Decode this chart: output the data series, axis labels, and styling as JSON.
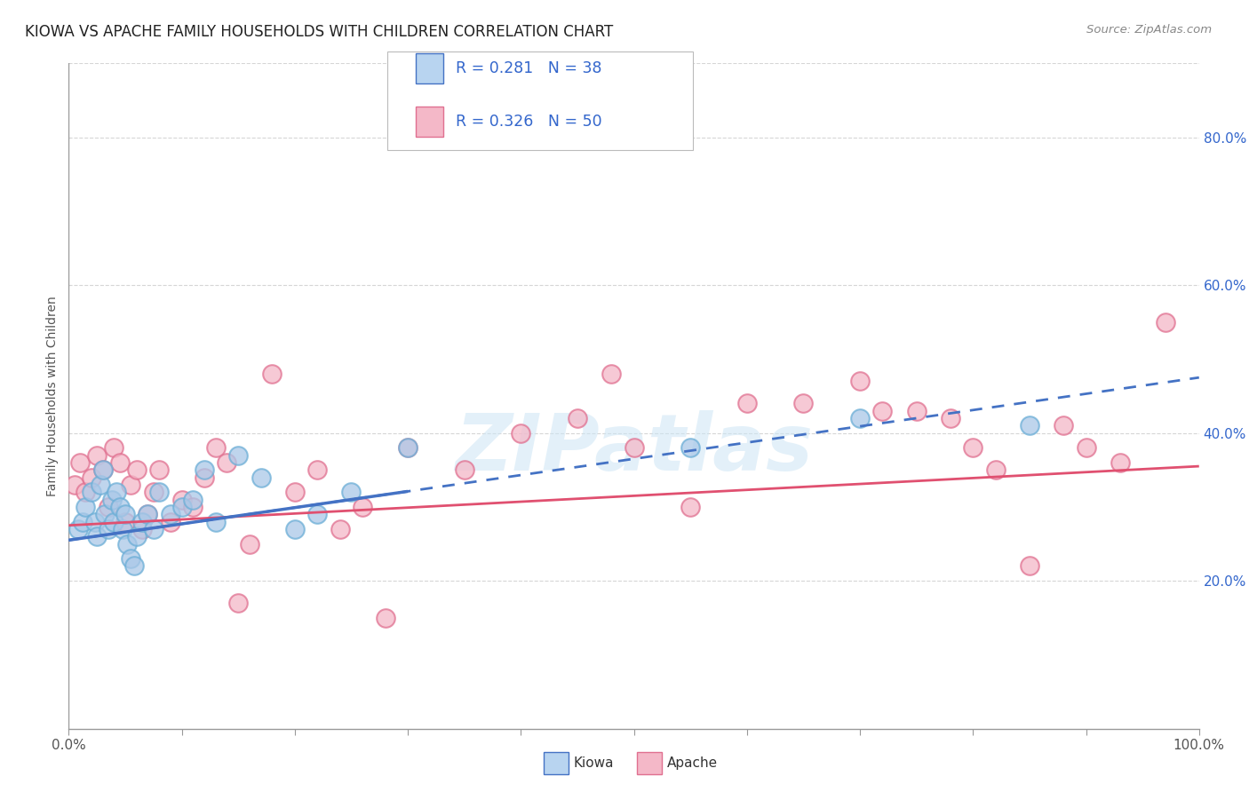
{
  "title": "KIOWA VS APACHE FAMILY HOUSEHOLDS WITH CHILDREN CORRELATION CHART",
  "source": "Source: ZipAtlas.com",
  "ylabel": "Family Households with Children",
  "watermark": "ZIPatlas",
  "kiowa": {
    "label": "Kiowa",
    "R": 0.281,
    "N": 38,
    "dot_fill": "#aac8e8",
    "dot_edge": "#6baed6",
    "line_color": "#4472c4",
    "legend_fill": "#b8d4f0",
    "x": [
      0.8,
      1.2,
      1.5,
      2.0,
      2.3,
      2.5,
      2.8,
      3.0,
      3.2,
      3.5,
      3.8,
      4.0,
      4.2,
      4.5,
      4.8,
      5.0,
      5.2,
      5.5,
      5.8,
      6.0,
      6.5,
      7.0,
      7.5,
      8.0,
      9.0,
      10.0,
      11.0,
      12.0,
      13.0,
      15.0,
      17.0,
      20.0,
      22.0,
      25.0,
      30.0,
      55.0,
      70.0,
      85.0
    ],
    "y": [
      27,
      28,
      30,
      32,
      28,
      26,
      33,
      35,
      29,
      27,
      31,
      28,
      32,
      30,
      27,
      29,
      25,
      23,
      22,
      26,
      28,
      29,
      27,
      32,
      29,
      30,
      31,
      35,
      28,
      37,
      34,
      27,
      29,
      32,
      38,
      38,
      42,
      41
    ],
    "trend_x0": 0,
    "trend_y0": 25.5,
    "trend_x1": 100,
    "trend_y1": 47.5
  },
  "apache": {
    "label": "Apache",
    "R": 0.326,
    "N": 50,
    "dot_fill": "#f4b8c8",
    "dot_edge": "#e07090",
    "line_color": "#e05070",
    "legend_fill": "#f4b8c8",
    "x": [
      0.5,
      1.0,
      1.5,
      2.0,
      2.5,
      3.0,
      3.5,
      4.0,
      4.5,
      5.0,
      5.5,
      6.0,
      6.5,
      7.0,
      7.5,
      8.0,
      9.0,
      10.0,
      11.0,
      12.0,
      13.0,
      14.0,
      15.0,
      16.0,
      18.0,
      20.0,
      22.0,
      24.0,
      26.0,
      28.0,
      30.0,
      35.0,
      40.0,
      45.0,
      48.0,
      50.0,
      55.0,
      60.0,
      65.0,
      70.0,
      72.0,
      75.0,
      78.0,
      80.0,
      82.0,
      85.0,
      88.0,
      90.0,
      93.0,
      97.0
    ],
    "y": [
      33,
      36,
      32,
      34,
      37,
      35,
      30,
      38,
      36,
      28,
      33,
      35,
      27,
      29,
      32,
      35,
      28,
      31,
      30,
      34,
      38,
      36,
      17,
      25,
      48,
      32,
      35,
      27,
      30,
      15,
      38,
      35,
      40,
      42,
      48,
      38,
      30,
      44,
      44,
      47,
      43,
      43,
      42,
      38,
      35,
      22,
      41,
      38,
      36,
      55
    ],
    "trend_x0": 0,
    "trend_y0": 27.5,
    "trend_x1": 100,
    "trend_y1": 35.5
  },
  "xlim": [
    0,
    100
  ],
  "ylim": [
    0,
    90
  ],
  "xtick_positions": [
    0,
    10,
    20,
    30,
    40,
    50,
    60,
    70,
    80,
    90,
    100
  ],
  "xtick_show_labels": [
    0,
    100
  ],
  "xticklabels_ends": [
    "0.0%",
    "100.0%"
  ],
  "ytick_positions": [
    20,
    40,
    60,
    80
  ],
  "ytick_labels": [
    "20.0%",
    "40.0%",
    "60.0%",
    "80.0%"
  ],
  "grid_color": "#cccccc",
  "background_color": "#ffffff",
  "title_fontsize": 12,
  "axis_label_fontsize": 10,
  "tick_fontsize": 11,
  "legend_text_color": "#3366cc",
  "legend_border_color": "#cccccc"
}
